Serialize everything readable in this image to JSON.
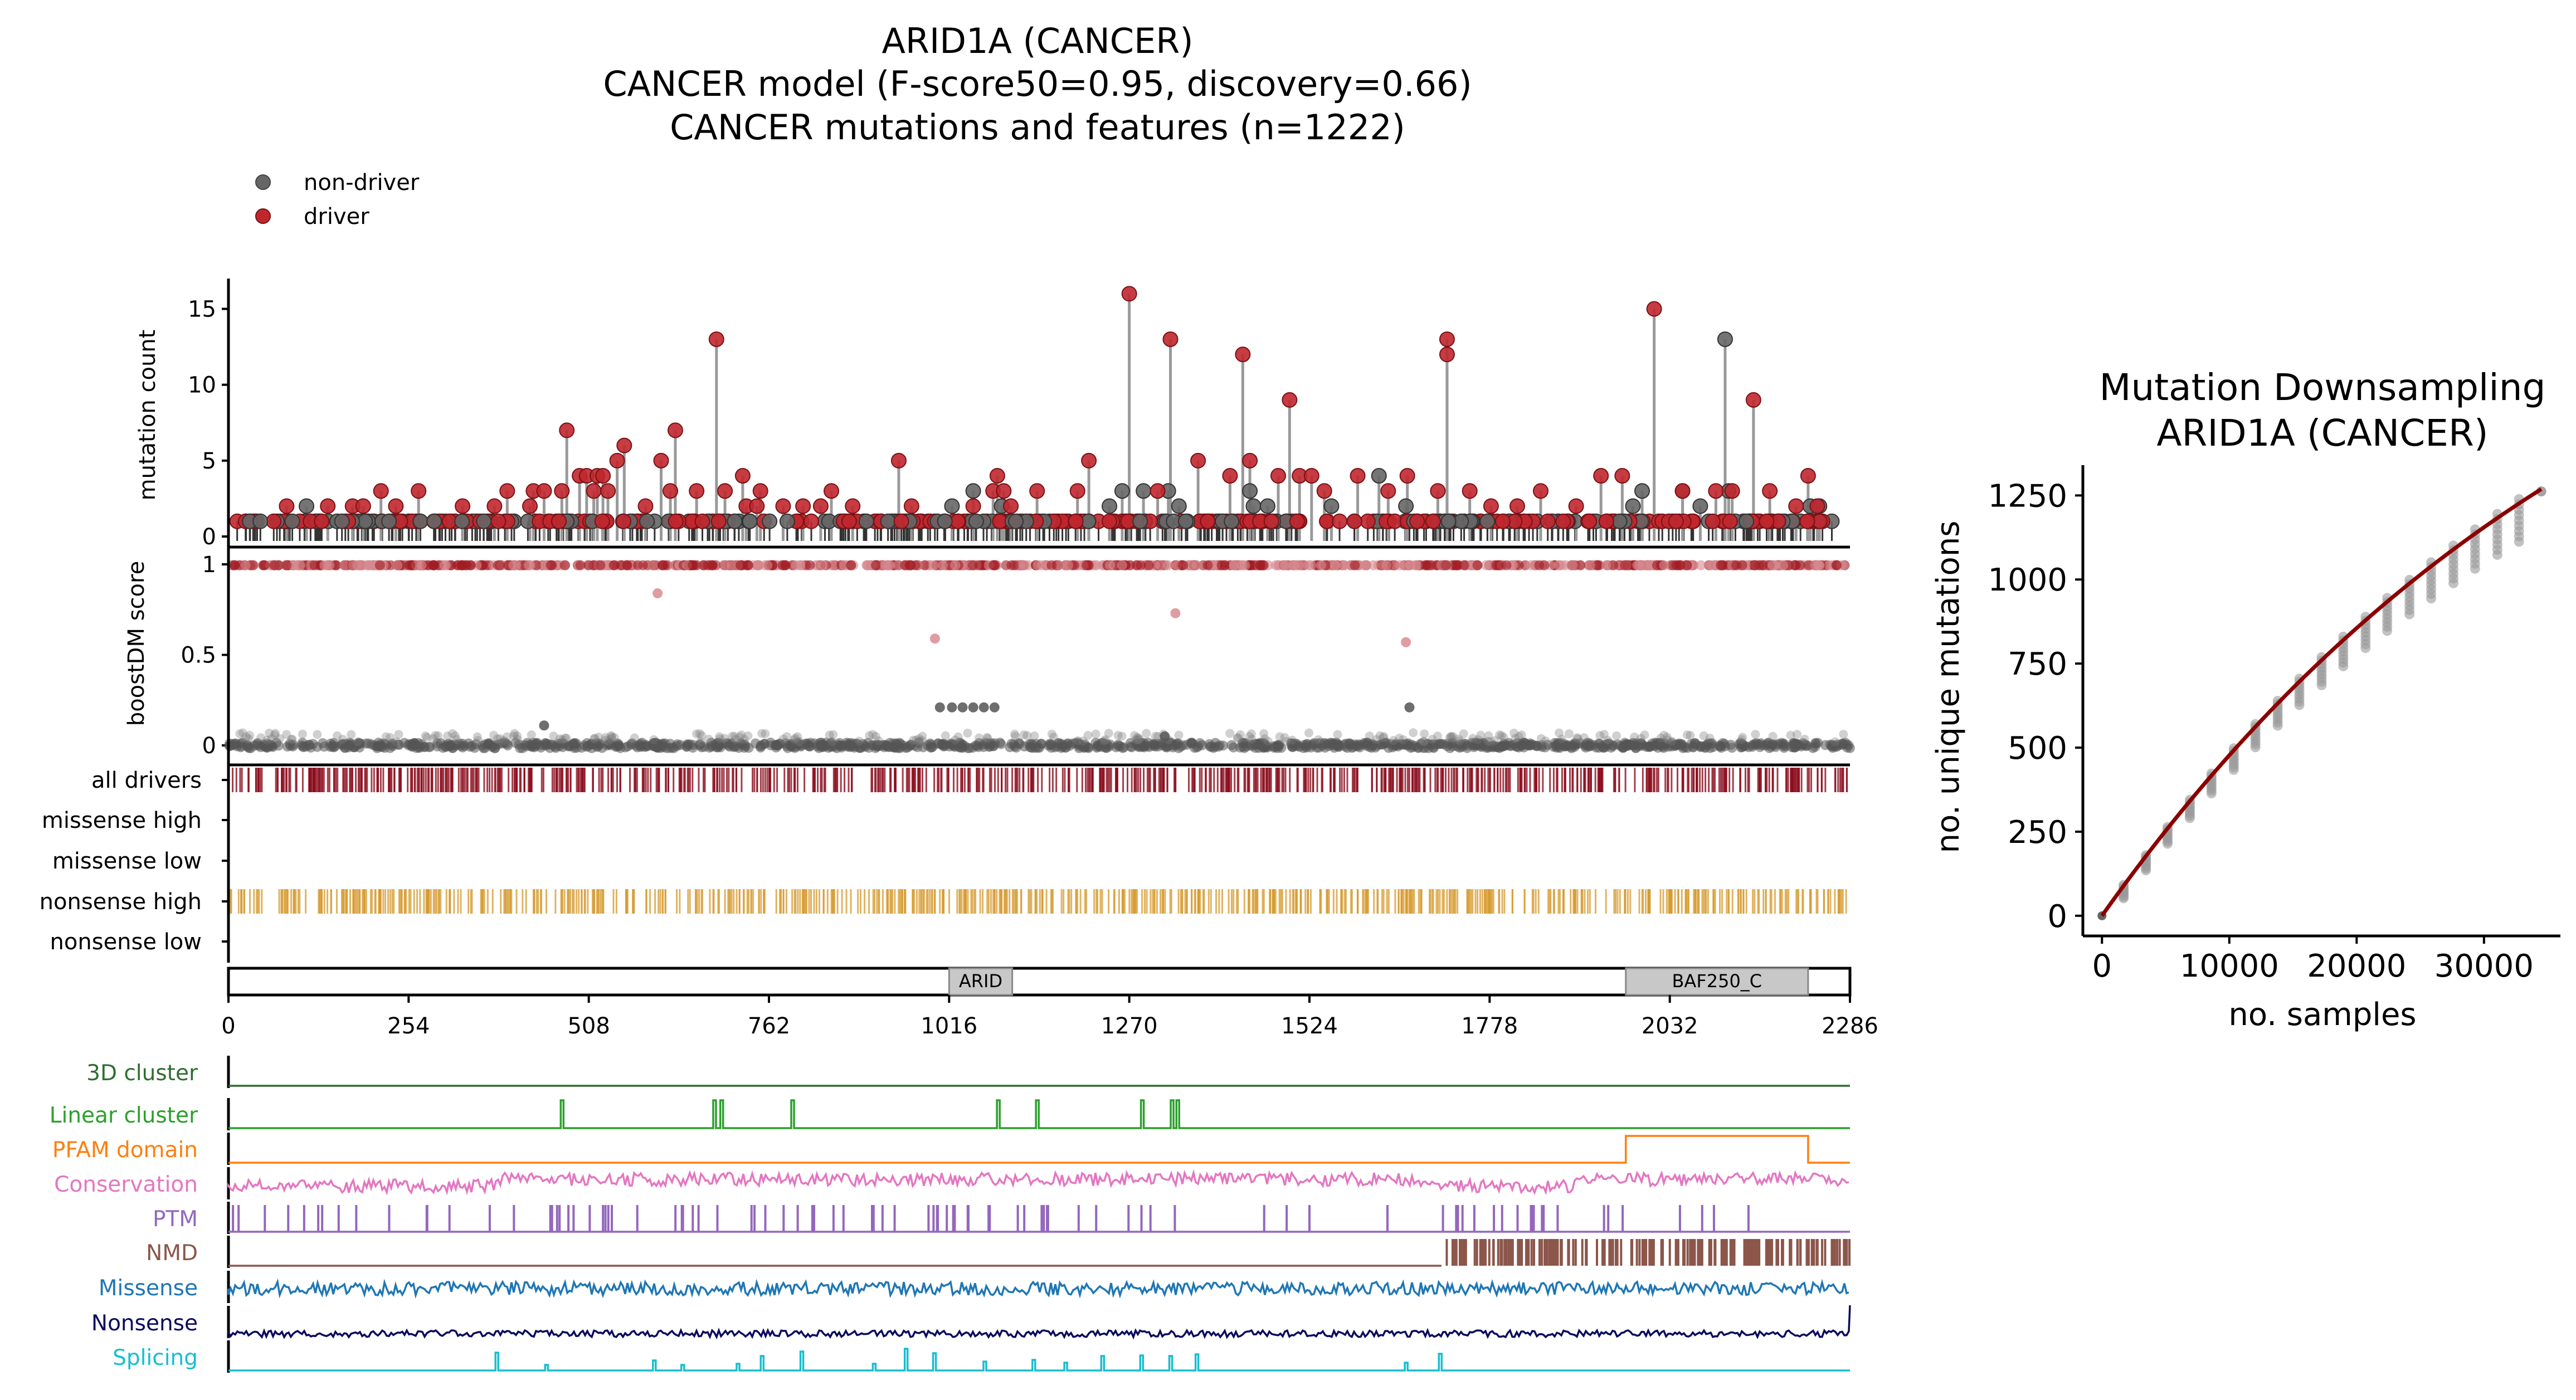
{
  "chart_data": [
    {
      "type": "lollipop",
      "title": [
        "ARID1A (CANCER)",
        "CANCER model (F-score50=0.95, discovery=0.66)",
        "CANCER mutations and features (n=1222)"
      ],
      "legend": [
        {
          "name": "non-driver",
          "color": "#666666"
        },
        {
          "name": "driver",
          "color": "#c0272d"
        }
      ],
      "legend_placement": "top-left",
      "x_domain": [
        0,
        2286
      ],
      "x_ticks": [
        "0",
        "254",
        "508",
        "762",
        "1016",
        "1270",
        "1524",
        "1778",
        "2032",
        "2286"
      ],
      "panels": {
        "mutation_count": {
          "ylabel": "mutation count",
          "ylim": [
            0,
            17
          ],
          "yticks": [
            "0",
            "5",
            "10",
            "15"
          ],
          "driver_peaks": [
            [
              82,
              2
            ],
            [
              140,
              2
            ],
            [
              175,
              2
            ],
            [
              190,
              2
            ],
            [
              215,
              3
            ],
            [
              236,
              2
            ],
            [
              268,
              3
            ],
            [
              330,
              2
            ],
            [
              375,
              2
            ],
            [
              393,
              3
            ],
            [
              425,
              2
            ],
            [
              430,
              3
            ],
            [
              445,
              3
            ],
            [
              477,
              7
            ],
            [
              470,
              3
            ],
            [
              495,
              4
            ],
            [
              505,
              4
            ],
            [
              515,
              3
            ],
            [
              520,
              4
            ],
            [
              528,
              4
            ],
            [
              535,
              3
            ],
            [
              548,
              5
            ],
            [
              558,
              6
            ],
            [
              588,
              2
            ],
            [
              610,
              5
            ],
            [
              623,
              3
            ],
            [
              630,
              7
            ],
            [
              660,
              3
            ],
            [
              688,
              13
            ],
            [
              700,
              3
            ],
            [
              725,
              4
            ],
            [
              730,
              2
            ],
            [
              750,
              3
            ],
            [
              745,
              2
            ],
            [
              782,
              2
            ],
            [
              810,
              2
            ],
            [
              835,
              2
            ],
            [
              850,
              3
            ],
            [
              880,
              2
            ],
            [
              945,
              5
            ],
            [
              963,
              2
            ],
            [
              1050,
              2
            ],
            [
              1078,
              3
            ],
            [
              1084,
              4
            ],
            [
              1093,
              3
            ],
            [
              1103,
              2
            ],
            [
              1140,
              3
            ],
            [
              1197,
              3
            ],
            [
              1213,
              5
            ],
            [
              1270,
              16
            ],
            [
              1310,
              3
            ],
            [
              1328,
              13
            ],
            [
              1367,
              5
            ],
            [
              1412,
              4
            ],
            [
              1430,
              12
            ],
            [
              1440,
              5
            ],
            [
              1480,
              4
            ],
            [
              1496,
              9
            ],
            [
              1510,
              4
            ],
            [
              1527,
              4
            ],
            [
              1545,
              3
            ],
            [
              1592,
              4
            ],
            [
              1635,
              3
            ],
            [
              1662,
              4
            ],
            [
              1705,
              3
            ],
            [
              1718,
              13
            ],
            [
              1718,
              12
            ],
            [
              1750,
              3
            ],
            [
              1780,
              2
            ],
            [
              1817,
              2
            ],
            [
              1850,
              3
            ],
            [
              1900,
              2
            ],
            [
              1935,
              4
            ],
            [
              1965,
              4
            ],
            [
              2010,
              15
            ],
            [
              2050,
              3
            ],
            [
              2097,
              3
            ],
            [
              2120,
              3
            ],
            [
              2150,
              9
            ],
            [
              2173,
              3
            ],
            [
              2210,
              2
            ],
            [
              2227,
              4
            ],
            [
              2240,
              2
            ]
          ],
          "nondriver_peaks": [
            [
              30,
              1
            ],
            [
              45,
              1
            ],
            [
              90,
              1
            ],
            [
              110,
              2
            ],
            [
              160,
              1
            ],
            [
              290,
              1
            ],
            [
              360,
              1
            ],
            [
              590,
              1
            ],
            [
              1010,
              1
            ],
            [
              1020,
              2
            ],
            [
              1050,
              3
            ],
            [
              1090,
              2
            ],
            [
              1110,
              1
            ],
            [
              1242,
              2
            ],
            [
              1260,
              3
            ],
            [
              1290,
              3
            ],
            [
              1325,
              3
            ],
            [
              1340,
              2
            ],
            [
              1440,
              3
            ],
            [
              1445,
              2
            ],
            [
              1465,
              2
            ],
            [
              1555,
              2
            ],
            [
              1622,
              4
            ],
            [
              1660,
              2
            ],
            [
              1720,
              1
            ],
            [
              1980,
              2
            ],
            [
              1993,
              3
            ],
            [
              2050,
              3
            ],
            [
              2075,
              2
            ],
            [
              2110,
              13
            ],
            [
              2115,
              3
            ],
            [
              2140,
              1
            ],
            [
              2230,
              2
            ],
            [
              2243,
              2
            ]
          ]
        },
        "boostdm_score": {
          "ylabel": "boostDM score",
          "ylim": [
            0,
            1
          ],
          "yticks": [
            "0",
            "0.5",
            "1"
          ],
          "mid_points": [
            [
              1003,
              0.21
            ],
            [
              1020,
              0.21
            ],
            [
              1035,
              0.21
            ],
            [
              1050,
              0.21
            ],
            [
              1065,
              0.21
            ],
            [
              1080,
              0.21
            ],
            [
              1665,
              0.21
            ],
            [
              605,
              0.84
            ],
            [
              996,
              0.59
            ],
            [
              1335,
              0.73
            ],
            [
              1660,
              0.57
            ],
            [
              445,
              0.11
            ],
            [
              1320,
              0.05
            ]
          ]
        },
        "rugs": {
          "rows": [
            "all drivers",
            "missense high",
            "missense low",
            "nonsense high",
            "nonsense low"
          ],
          "colors": {
            "all drivers": "#8b0e1e",
            "nonsense high": "#d69a2d"
          }
        },
        "domains": [
          {
            "name": "ARID",
            "start": 1016,
            "end": 1105
          },
          {
            "name": "BAF250_C",
            "start": 1970,
            "end": 2227
          }
        ],
        "feature_tracks": [
          {
            "name": "3D cluster",
            "color": "#2f6e2f",
            "kind": "flat"
          },
          {
            "name": "Linear cluster",
            "color": "#2ca02c",
            "kind": "spikes",
            "positions": [
              470,
              685,
              695,
              795,
              1085,
              1140,
              1288,
              1330,
              1338
            ]
          },
          {
            "name": "PFAM domain",
            "color": "#ff7f0e",
            "kind": "blocks",
            "blocks": [
              [
                1970,
                2227
              ]
            ]
          },
          {
            "name": "Conservation",
            "color": "#e377c2",
            "kind": "noise"
          },
          {
            "name": "PTM",
            "color": "#9467bd",
            "kind": "bars"
          },
          {
            "name": "NMD",
            "color": "#8c564b",
            "kind": "nmd",
            "start": 1710
          },
          {
            "name": "Missense",
            "color": "#1f77b4",
            "kind": "noise"
          },
          {
            "name": "Nonsense",
            "color": "#0b0b5e",
            "kind": "noise"
          },
          {
            "name": "Splicing",
            "color": "#17becf",
            "kind": "spikes",
            "positions": [
              378,
              448,
              600,
              640,
              718,
              752,
              808,
              910,
              955,
              995,
              1066,
              1135,
              1180,
              1232,
              1287,
              1328,
              1365,
              1660,
              1708
            ]
          }
        ]
      }
    },
    {
      "type": "scatter",
      "title": [
        "Mutation Downsampling",
        "ARID1A (CANCER)"
      ],
      "xlabel": "no. samples",
      "ylabel": "no. unique mutations",
      "xlim": [
        -1500,
        36000
      ],
      "ylim": [
        -60,
        1340
      ],
      "xticks": [
        "0",
        "10000",
        "20000",
        "30000"
      ],
      "yticks": [
        "0",
        "250",
        "500",
        "750",
        "1000",
        "1250"
      ],
      "fit_color": "#8b0000",
      "points_color": "#888888",
      "x_values": [
        1700,
        3450,
        5150,
        6900,
        8600,
        10350,
        12050,
        13800,
        15500,
        17250,
        18950,
        20700,
        22400,
        24150,
        25850,
        27600,
        29300,
        31050,
        32750,
        34500
      ],
      "y_values": [
        92,
        180,
        264,
        345,
        423,
        498,
        570,
        639,
        705,
        769,
        830,
        889,
        945,
        999,
        1051,
        1101,
        1149,
        1195,
        1239,
        1262
      ]
    }
  ]
}
